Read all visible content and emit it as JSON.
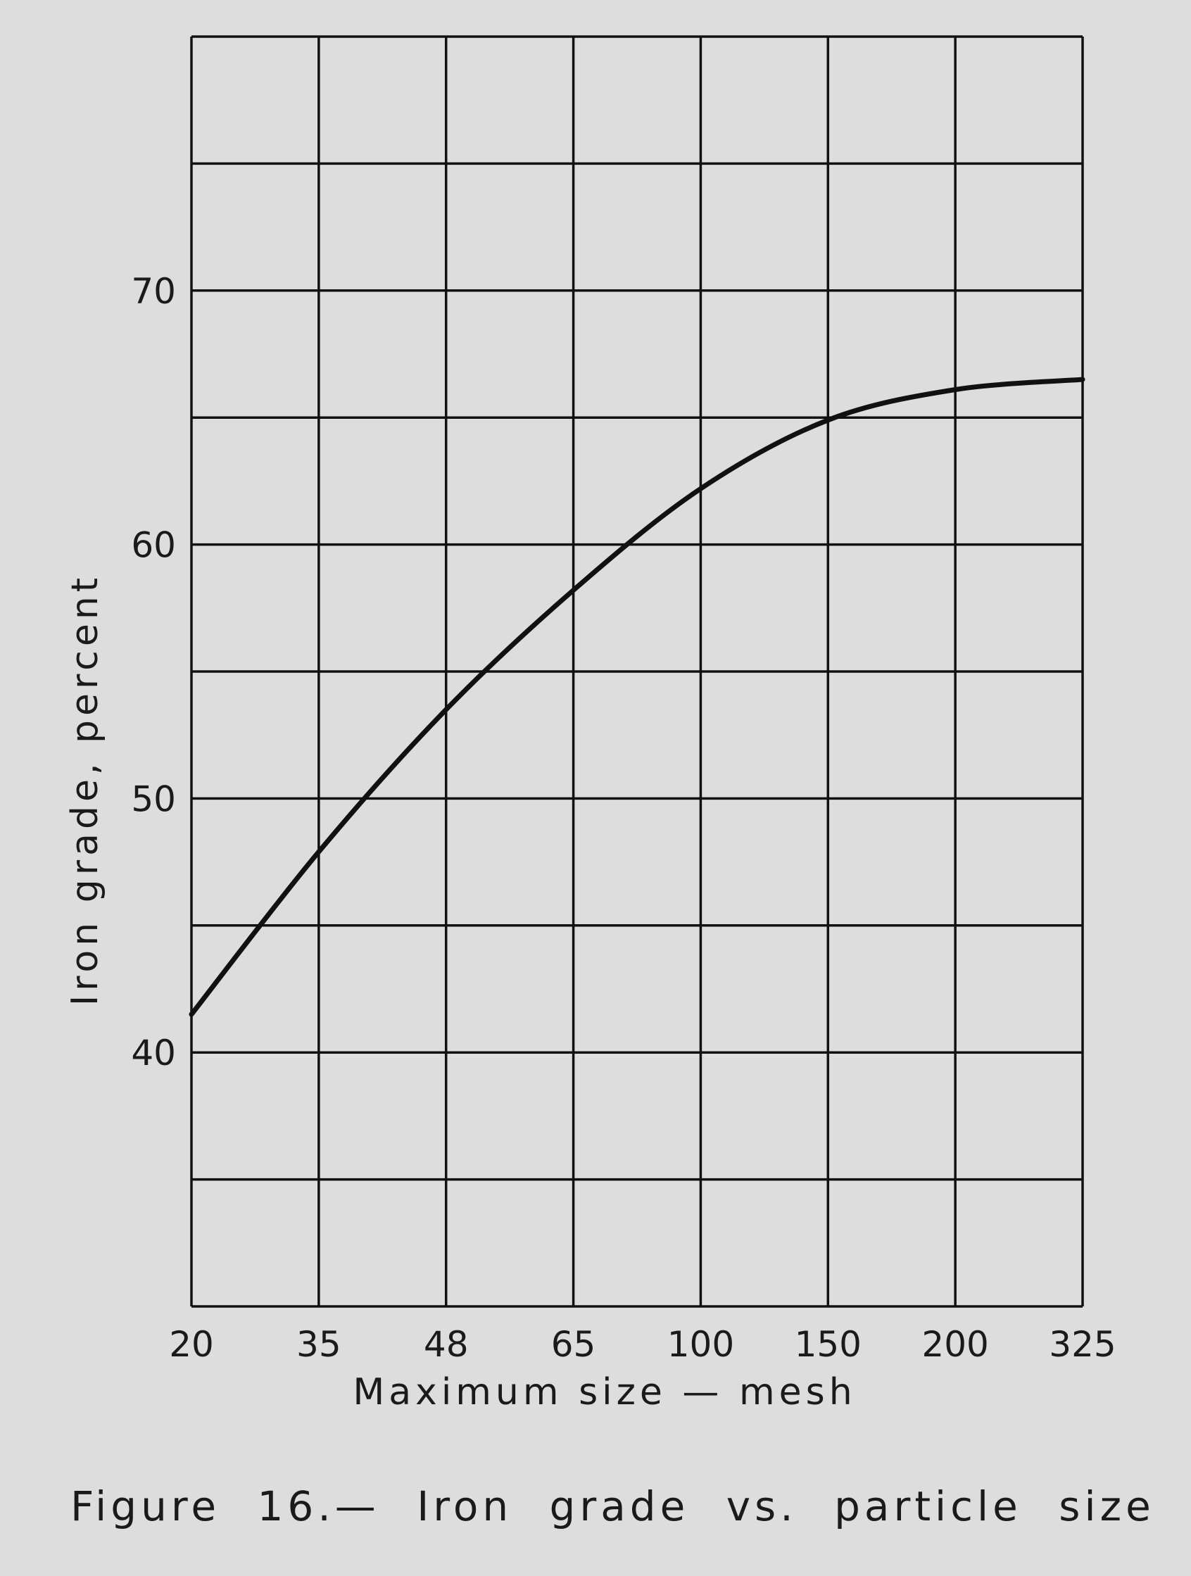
{
  "chart_data": {
    "type": "line",
    "title": "Figure 16.—  Iron grade vs. particle size",
    "xlabel": "Maximum size — mesh",
    "ylabel": "Iron grade, percent",
    "categories": [
      "20",
      "35",
      "48",
      "65",
      "100",
      "150",
      "200",
      "325"
    ],
    "y_ticks": [
      40,
      50,
      60,
      70
    ],
    "ylim": [
      30,
      80
    ],
    "grid": true,
    "series": [
      {
        "values": [
          41.5,
          47.9,
          53.5,
          58.2,
          62.2,
          64.9,
          66.1,
          66.5
        ]
      }
    ]
  }
}
